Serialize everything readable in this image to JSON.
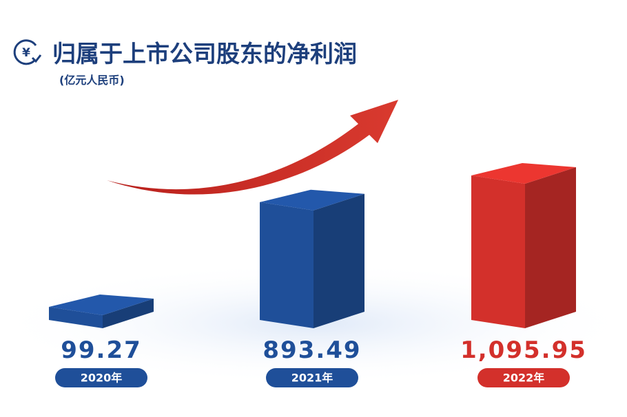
{
  "chart_data": {
    "type": "bar3d",
    "title": "归属于上市公司股东的净利润",
    "subtitle": "(亿元人民币)",
    "categories": [
      "2020年",
      "2021年",
      "2022年"
    ],
    "values": [
      99.27,
      893.49,
      1095.95
    ],
    "value_labels": [
      "99.27",
      "893.49",
      "1,095.95"
    ],
    "colors": [
      "#1f4f99",
      "#1f4f99",
      "#d3302b"
    ]
  }
}
